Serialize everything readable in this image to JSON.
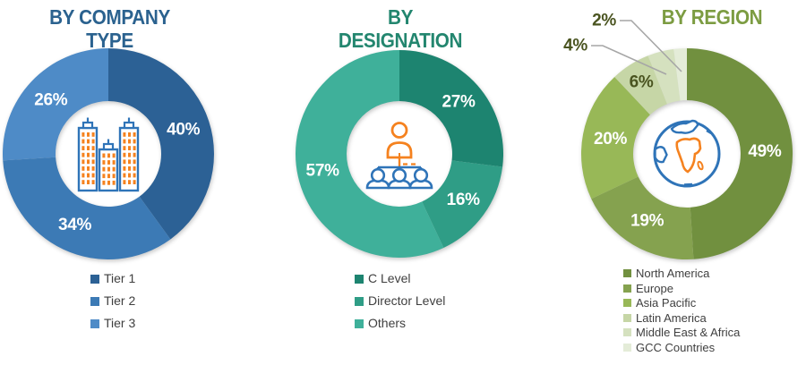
{
  "style": {
    "background": "#FFFFFF",
    "legend_text_color": "#3F3F3F",
    "callout_line_color": "#A6A6A6",
    "icon_blue": "#2F74B8",
    "icon_orange": "#F5821F"
  },
  "chart_data": [
    {
      "type": "donut",
      "title": "BY COMPANY TYPE",
      "title_color": "#2B628F",
      "center_icon": "buildings-icon",
      "start_angle_deg": 0,
      "direction": "clockwise",
      "categories": [
        "Tier 1",
        "Tier 2",
        "Tier 3"
      ],
      "values": [
        40,
        34,
        26
      ],
      "labels": [
        "40%",
        "34%",
        "26%"
      ],
      "colors": [
        "#2C6195",
        "#3C7AB5",
        "#4E8BC7"
      ],
      "label_colors": [
        "#FFFFFF",
        "#FFFFFF",
        "#FFFFFF"
      ],
      "legend_position": "bottom"
    },
    {
      "type": "donut",
      "title": "BY DESIGNATION",
      "title_color": "#23866F",
      "center_icon": "org-chart-icon",
      "start_angle_deg": 0,
      "direction": "clockwise",
      "categories": [
        "C Level",
        "Director Level",
        "Others"
      ],
      "values": [
        27,
        16,
        57
      ],
      "labels": [
        "27%",
        "16%",
        "57%"
      ],
      "colors": [
        "#1D8470",
        "#2F9D86",
        "#3FB09A"
      ],
      "label_colors": [
        "#FFFFFF",
        "#FFFFFF",
        "#FFFFFF"
      ],
      "legend_position": "bottom"
    },
    {
      "type": "donut",
      "title": "BY REGION",
      "title_color": "#7C9C42",
      "center_icon": "globe-icon",
      "start_angle_deg": 0,
      "direction": "clockwise",
      "categories": [
        "North America",
        "Europe",
        "Asia Pacific",
        "Latin America",
        "Middle East & Africa",
        "GCC Countries"
      ],
      "values": [
        49,
        19,
        20,
        6,
        4,
        2
      ],
      "labels": [
        "49%",
        "19%",
        "20%",
        "6%",
        "4%",
        "2%"
      ],
      "colors": [
        "#71903F",
        "#85A24F",
        "#98B857",
        "#C6D6A6",
        "#D5E1BF",
        "#E4ECD8"
      ],
      "label_colors": [
        "#FFFFFF",
        "#FFFFFF",
        "#FFFFFF",
        "#4A5420",
        "#4A5420",
        "#4A5420"
      ],
      "callout_labels": [
        "Middle East & Africa",
        "GCC Countries"
      ],
      "legend_position": "bottom"
    }
  ]
}
